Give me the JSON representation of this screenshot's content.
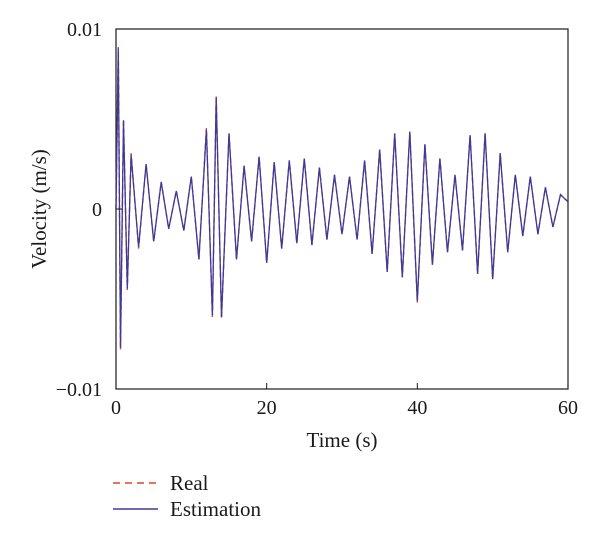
{
  "chart_data": {
    "type": "line",
    "xlabel": "Time (s)",
    "ylabel": "Velocity (m/s)",
    "xlim": [
      0,
      60
    ],
    "ylim": [
      -0.01,
      0.01
    ],
    "x_ticks": [
      0,
      20,
      40,
      60
    ],
    "x_tick_labels": [
      "0",
      "20",
      "40",
      "60"
    ],
    "y_ticks": [
      -0.01,
      0,
      0.01
    ],
    "y_tick_labels": [
      "−0.01",
      "0",
      "0.01"
    ],
    "grid": false,
    "legend_position": "bottom-left, below axes",
    "series": [
      {
        "name": "Real",
        "color": "#e0442a",
        "style": "dashed",
        "x": [
          0,
          0.3,
          0.6,
          1.0,
          1.5,
          2,
          3,
          4,
          5,
          6,
          7,
          8,
          9,
          10,
          11,
          12,
          12.8,
          13.3,
          14,
          15,
          16,
          17,
          18,
          19,
          20,
          21,
          22,
          23,
          24,
          25,
          26,
          27,
          28,
          29,
          30,
          31,
          32,
          33,
          34,
          35,
          36,
          37,
          38,
          39,
          40,
          41,
          42,
          43,
          44,
          45,
          46,
          47,
          48,
          49,
          50,
          51,
          52,
          53,
          54,
          55,
          56,
          57,
          58,
          59,
          60
        ],
        "y": [
          0.0,
          0.009,
          -0.0078,
          0.005,
          -0.0045,
          0.0031,
          -0.0022,
          0.0025,
          -0.0018,
          0.0015,
          -0.0011,
          0.001,
          -0.0012,
          0.0018,
          -0.0028,
          0.0045,
          -0.006,
          0.0063,
          -0.0061,
          0.0042,
          -0.0028,
          0.0024,
          -0.0018,
          0.0029,
          -0.003,
          0.0026,
          -0.0022,
          0.0027,
          -0.0019,
          0.0028,
          -0.002,
          0.0023,
          -0.0017,
          0.0019,
          -0.0014,
          0.0018,
          -0.0017,
          0.0027,
          -0.0025,
          0.0033,
          -0.0035,
          0.0042,
          -0.0038,
          0.0043,
          -0.0052,
          0.0036,
          -0.0031,
          0.0028,
          -0.0024,
          0.0019,
          -0.0023,
          0.0041,
          -0.0036,
          0.0042,
          -0.0039,
          0.0031,
          -0.0024,
          0.0019,
          -0.0015,
          0.0018,
          -0.0014,
          0.0012,
          -0.001,
          0.0008,
          0.0004
        ]
      },
      {
        "name": "Estimation",
        "color": "#3d3a9c",
        "style": "solid",
        "x": [
          0,
          0.3,
          0.6,
          1.0,
          1.5,
          2,
          3,
          4,
          5,
          6,
          7,
          8,
          9,
          10,
          11,
          12,
          12.8,
          13.3,
          14,
          15,
          16,
          17,
          18,
          19,
          20,
          21,
          22,
          23,
          24,
          25,
          26,
          27,
          28,
          29,
          30,
          31,
          32,
          33,
          34,
          35,
          36,
          37,
          38,
          39,
          40,
          41,
          42,
          43,
          44,
          45,
          46,
          47,
          48,
          49,
          50,
          51,
          52,
          53,
          54,
          55,
          56,
          57,
          58,
          59,
          60
        ],
        "y": [
          0.0,
          0.0089,
          -0.0077,
          0.0049,
          -0.0044,
          0.003,
          -0.0021,
          0.0025,
          -0.0018,
          0.0015,
          -0.0011,
          0.001,
          -0.0012,
          0.0018,
          -0.0028,
          0.0044,
          -0.0059,
          0.0062,
          -0.006,
          0.0042,
          -0.0028,
          0.0024,
          -0.0018,
          0.0029,
          -0.003,
          0.0026,
          -0.0022,
          0.0027,
          -0.0019,
          0.0028,
          -0.002,
          0.0023,
          -0.0017,
          0.0019,
          -0.0014,
          0.0018,
          -0.0017,
          0.0027,
          -0.0025,
          0.0033,
          -0.0035,
          0.0042,
          -0.0038,
          0.0043,
          -0.0051,
          0.0036,
          -0.0031,
          0.0028,
          -0.0024,
          0.0019,
          -0.0023,
          0.0041,
          -0.0036,
          0.0042,
          -0.0039,
          0.0031,
          -0.0024,
          0.0019,
          -0.0015,
          0.0018,
          -0.0014,
          0.0012,
          -0.001,
          0.0008,
          0.0004
        ]
      }
    ]
  }
}
